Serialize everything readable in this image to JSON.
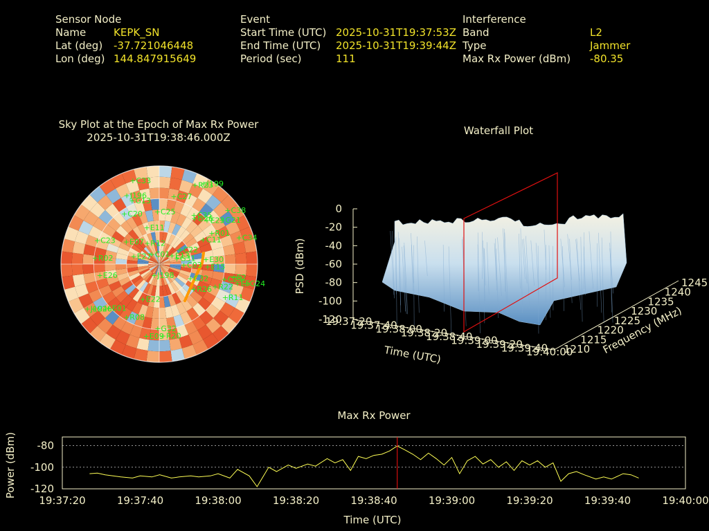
{
  "header": {
    "sensor": {
      "title": "Sensor Node",
      "name_label": "Name",
      "name_value": "KEPK_SN",
      "lat_label": "Lat (deg)",
      "lat_value": "-37.721046448",
      "lon_label": "Lon (deg)",
      "lon_value": "144.847915649"
    },
    "event": {
      "title": "Event",
      "start_label": "Start Time (UTC)",
      "start_value": "2025-10-31T19:37:53Z",
      "end_label": "End Time (UTC)",
      "end_value": "2025-10-31T19:39:44Z",
      "period_label": "Period (sec)",
      "period_value": "111"
    },
    "interference": {
      "title": "Interference",
      "band_label": "Band",
      "band_value": "L2",
      "type_label": "Type",
      "type_value": "Jammer",
      "power_label": "Max Rx Power (dBm)",
      "power_value": "-80.35"
    }
  },
  "colors": {
    "background": "#000000",
    "text": "#f4f0c8",
    "value": "#f2e32a",
    "satellite": "#22ee22",
    "marker": "#ff1010",
    "trace": "#ffff55",
    "track": "#ff9900"
  },
  "chart_data": [
    {
      "type": "heatmap",
      "title": "Sky Plot at the Epoch of Max Rx Power",
      "subtitle": "2025-10-31T19:38:46.000Z",
      "satellites": [
        "C27",
        "R23",
        "J196",
        "C35",
        "R01",
        "J198",
        "C32",
        "E2",
        "E11",
        "C03",
        "C33",
        "C38",
        "C34",
        "C23",
        "R22",
        "E26",
        "R02",
        "C20",
        "C25",
        "E13",
        "E5",
        "E30",
        "E15",
        "C23",
        "G13",
        "C26",
        "G24",
        "E23",
        "E22",
        "R12",
        "E09",
        "R11",
        "G31",
        "C11",
        "C01",
        "G21",
        "R20",
        "R08",
        "J194",
        "J199",
        "C22",
        "G32",
        "E27",
        "E07",
        "E01",
        "G26",
        "R26"
      ]
    },
    {
      "type": "area",
      "title": "Waterfall Plot",
      "xlabel": "Time (UTC)",
      "ylabel": "Frequency (MHz)",
      "zlabel": "PSD (dBm)",
      "x_ticks": [
        "19:37:20",
        "19:37:40",
        "19:38:00",
        "19:38:20",
        "19:38:40",
        "19:39:00",
        "19:39:20",
        "19:39:40",
        "19:40:00"
      ],
      "y_ticks": [
        "1210",
        "1215",
        "1220",
        "1225",
        "1230",
        "1235",
        "1240",
        "1245"
      ],
      "z_ticks": [
        "0",
        "-20",
        "-40",
        "-60",
        "-80",
        "-100",
        "-120"
      ],
      "zlim": [
        -120,
        0
      ]
    },
    {
      "type": "line",
      "title": "Max Rx Power",
      "xlabel": "Time (UTC)",
      "ylabel": "Power (dBm)",
      "x_ticks": [
        "19:37:20",
        "19:37:40",
        "19:38:00",
        "19:38:20",
        "19:38:40",
        "19:39:00",
        "19:39:20",
        "19:39:40",
        "19:40:00"
      ],
      "y_ticks": [
        "-80",
        "-100",
        "-120"
      ],
      "ylim": [
        -120,
        -72
      ],
      "marker_time_s": 86,
      "x_seconds": [
        7,
        9,
        11,
        15,
        18,
        20,
        23,
        25,
        28,
        30,
        33,
        35,
        38,
        40,
        43,
        45,
        48,
        50,
        53,
        55,
        58,
        60,
        63,
        65,
        68,
        70,
        72,
        74,
        76,
        78,
        80,
        82,
        84,
        86,
        88,
        90,
        92,
        94,
        96,
        98,
        100,
        102,
        104,
        106,
        108,
        110,
        112,
        114,
        116,
        118,
        120,
        122,
        124,
        126,
        128,
        130,
        132,
        134,
        137,
        139,
        141,
        144,
        146,
        148
      ],
      "y_dbm": [
        -106,
        -105.5,
        -107,
        -109,
        -110,
        -108,
        -109,
        -107,
        -110,
        -109,
        -108,
        -109,
        -108,
        -106,
        -110,
        -102,
        -108,
        -118,
        -100,
        -104,
        -98,
        -101,
        -97,
        -99,
        -92,
        -96,
        -93,
        -103,
        -90,
        -92,
        -89,
        -88,
        -85,
        -80.35,
        -84,
        -88,
        -93,
        -87,
        -92,
        -98,
        -91,
        -106,
        -94,
        -90,
        -97,
        -93,
        -100,
        -95,
        -103,
        -94,
        -98,
        -94,
        -100,
        -96,
        -113,
        -106,
        -104,
        -107,
        -111,
        -109,
        -111,
        -106,
        -107,
        -110
      ]
    }
  ]
}
